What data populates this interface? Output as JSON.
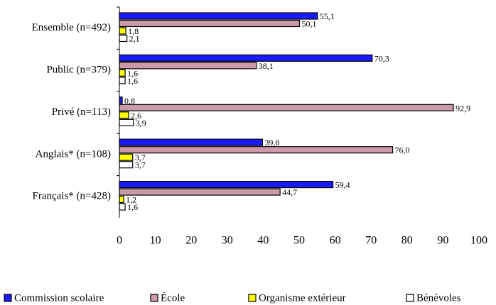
{
  "chart_data": {
    "type": "hbar",
    "categories": [
      "Ensemble (n=492)",
      "Public (n=379)",
      "Privé (n=113)",
      "Anglais* (n=108)",
      "Français* (n=428)"
    ],
    "series": [
      {
        "name": "Commission scolaire",
        "color": "#1a1aff",
        "values": [
          55.1,
          70.3,
          0.8,
          39.8,
          59.4
        ],
        "value_labels": [
          "55,1",
          "70,3",
          "0,8",
          "39,8",
          "59,4"
        ]
      },
      {
        "name": "École",
        "color": "#cc99aa",
        "values": [
          50.1,
          38.1,
          92.9,
          76.0,
          44.7
        ],
        "value_labels": [
          "50,1",
          "38,1",
          "92,9",
          "76,0",
          "44,7"
        ]
      },
      {
        "name": "Organisme extérieur",
        "color": "#ffff00",
        "values": [
          1.8,
          1.6,
          2.6,
          3.7,
          1.2
        ],
        "value_labels": [
          "1,8",
          "1,6",
          "2,6",
          "3,7",
          "1,2"
        ]
      },
      {
        "name": "Bénévoles",
        "color": "#ffffff",
        "values": [
          2.1,
          1.6,
          3.9,
          3.7,
          1.6
        ],
        "value_labels": [
          "2,1",
          "1,6",
          "3,9",
          "3,7",
          "1,6"
        ]
      }
    ],
    "xlim": [
      0,
      100
    ],
    "xticks": [
      0,
      10,
      20,
      30,
      40,
      50,
      60,
      70,
      80,
      90,
      100
    ]
  }
}
